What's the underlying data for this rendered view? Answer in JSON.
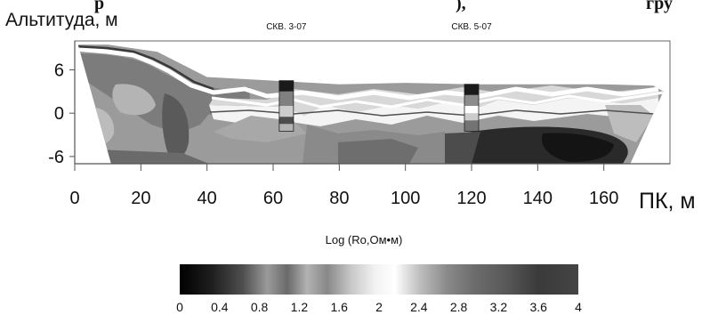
{
  "title_fragments": {
    "left": "р",
    "middle": "), ",
    "right": "гру"
  },
  "colorbar": {
    "title": "Log (Ro,Ом•м)",
    "ticks": [
      "0",
      "0.4",
      "0.8",
      "1.2",
      "1.6",
      "2",
      "2.4",
      "2.8",
      "3.2",
      "3.6",
      "4"
    ]
  },
  "chart_data": {
    "type": "heatmap",
    "ylabel": "Альтитуда, м",
    "xlabel": "ПК, м",
    "xlim": [
      0,
      180
    ],
    "ylim": [
      -7,
      10
    ],
    "xticks": [
      "0",
      "20",
      "40",
      "60",
      "80",
      "100",
      "120",
      "140",
      "160"
    ],
    "yticks": [
      "6",
      "0",
      "-6"
    ],
    "annotations": [
      {
        "text": "СКВ. 3-07",
        "x": 64
      },
      {
        "text": "СКВ. 5-07",
        "x": 120
      }
    ],
    "colorscale": {
      "min": 0,
      "max": 4,
      "low_color": "#000000",
      "high_color": "#ffffff",
      "note": "inverted above 2"
    },
    "surface": [
      [
        1,
        9.5
      ],
      [
        10,
        9.5
      ],
      [
        25,
        8.5
      ],
      [
        40,
        5
      ],
      [
        60,
        4.5
      ],
      [
        80,
        4
      ],
      [
        100,
        4.2
      ],
      [
        120,
        4
      ],
      [
        140,
        4
      ],
      [
        160,
        4
      ],
      [
        175,
        3.8
      ],
      [
        178,
        3
      ]
    ],
    "boreholes": [
      {
        "x": 64,
        "top": 4.5,
        "bottom": -2.5,
        "segments": [
          {
            "from": 4.5,
            "to": 3,
            "value": 0.2
          },
          {
            "from": 3,
            "to": 1,
            "value": 1.0
          },
          {
            "from": 1,
            "to": -0.5,
            "value": 1.6
          },
          {
            "from": -0.5,
            "to": -1.5,
            "value": 0.6
          },
          {
            "from": -1.5,
            "to": -2.5,
            "value": 1.4
          }
        ]
      },
      {
        "x": 120,
        "top": 4,
        "bottom": -2.5,
        "segments": [
          {
            "from": 4,
            "to": 2.5,
            "value": 0.2
          },
          {
            "from": 2.5,
            "to": 1,
            "value": 1.1
          },
          {
            "from": 1,
            "to": 0,
            "value": 2.1
          },
          {
            "from": 0,
            "to": -1,
            "value": 1.6
          },
          {
            "from": -1,
            "to": -2.5,
            "value": 0.9
          }
        ]
      }
    ]
  }
}
